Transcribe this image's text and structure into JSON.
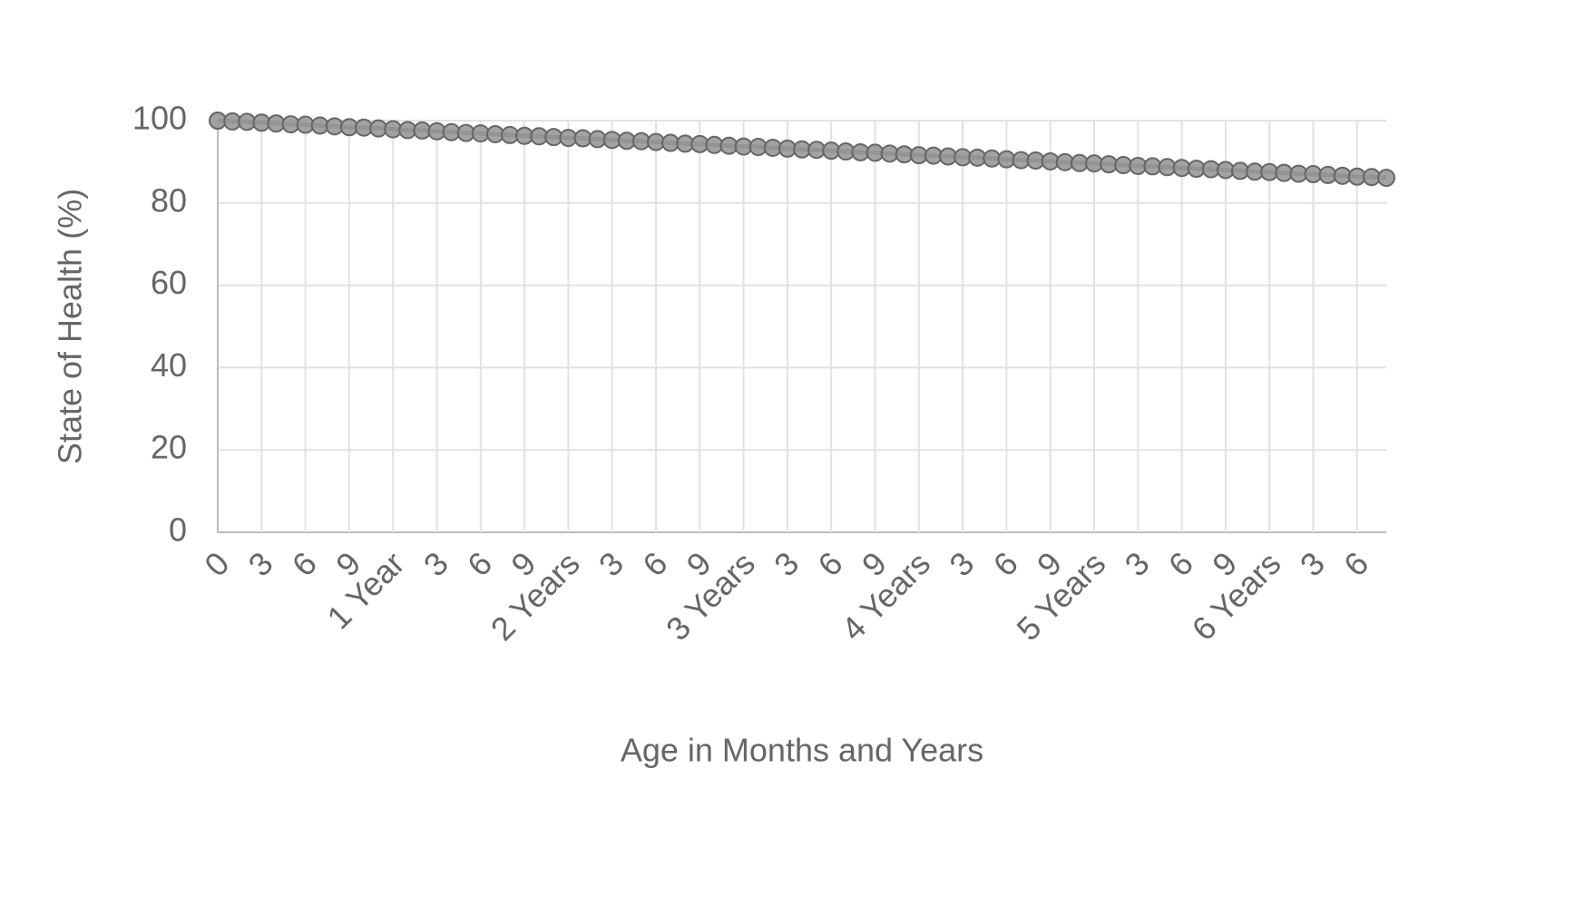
{
  "chart_data": {
    "type": "line",
    "x_label": "Age in Months and Years",
    "y_label": "State of Health (%)",
    "categories": [
      "0",
      null,
      null,
      "3",
      null,
      null,
      "6",
      null,
      null,
      "9",
      null,
      null,
      "1 Year",
      null,
      null,
      "3",
      null,
      null,
      "6",
      null,
      null,
      "9",
      null,
      null,
      "2 Years",
      null,
      null,
      "3",
      null,
      null,
      "6",
      null,
      null,
      "9",
      null,
      null,
      "3 Years",
      null,
      null,
      "3",
      null,
      null,
      "6",
      null,
      null,
      "9",
      null,
      null,
      "4 Years",
      null,
      null,
      "3",
      null,
      null,
      "6",
      null,
      null,
      "9",
      null,
      null,
      "5 Years",
      null,
      null,
      "3",
      null,
      null,
      "6",
      null,
      null,
      "9",
      null,
      null,
      "6 Years",
      null,
      null,
      "3",
      null,
      null,
      "6",
      null,
      null
    ],
    "series": [
      {
        "color": "#666666",
        "values": [
          100,
          99.8,
          99.7,
          99.5,
          99.3,
          99.1,
          99.0,
          98.8,
          98.6,
          98.4,
          98.3,
          98.1,
          97.9,
          97.7,
          97.6,
          97.4,
          97.2,
          97.0,
          96.9,
          96.7,
          96.5,
          96.3,
          96.2,
          96.0,
          95.8,
          95.7,
          95.5,
          95.3,
          95.1,
          95.0,
          94.8,
          94.6,
          94.4,
          94.3,
          94.1,
          93.9,
          93.7,
          93.6,
          93.4,
          93.2,
          93.0,
          92.9,
          92.7,
          92.5,
          92.3,
          92.2,
          92.0,
          91.8,
          91.6,
          91.5,
          91.3,
          91.1,
          91.0,
          90.8,
          90.6,
          90.4,
          90.3,
          90.1,
          89.9,
          89.7,
          89.6,
          89.4,
          89.2,
          89.0,
          88.9,
          88.7,
          88.5,
          88.3,
          88.2,
          88.0,
          87.8,
          87.6,
          87.5,
          87.3,
          87.1,
          87.0,
          86.8,
          86.6,
          86.4,
          86.3,
          86.1
        ]
      }
    ],
    "ylim": [
      0,
      100
    ],
    "yticks": [
      0,
      20,
      40,
      60,
      80,
      100
    ],
    "grid": true
  }
}
